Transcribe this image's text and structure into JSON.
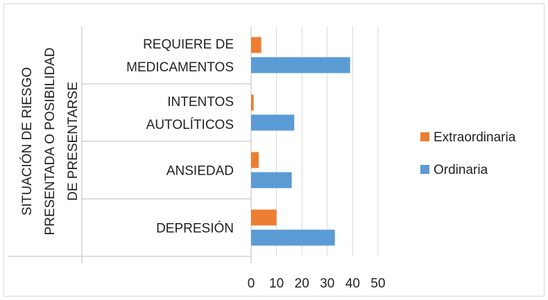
{
  "chart_data": {
    "type": "bar",
    "orientation": "horizontal",
    "categories": [
      "DEPRESIÓN",
      "ANSIEDAD",
      "INTENTOS AUTOLÍTICOS",
      "REQUIERE DE MEDICAMENTOS"
    ],
    "category_label_lines": [
      [
        "DEPRESIÓN"
      ],
      [
        "ANSIEDAD"
      ],
      [
        "INTENTOS",
        "AUTOLÍTICOS"
      ],
      [
        "REQUIERE DE",
        "MEDICAMENTOS"
      ]
    ],
    "series": [
      {
        "name": "Ordinaria",
        "color": "#5b9bd5",
        "values": [
          33,
          16,
          17,
          39
        ]
      },
      {
        "name": "Extraordinaria",
        "color": "#ed7d31",
        "values": [
          10,
          3,
          1,
          4
        ]
      }
    ],
    "ylabel_lines": [
      "SITUACIÓN DE RIESGO",
      "PRESENTADA O POSIBILIDAD",
      "DE PRESENTARSE"
    ],
    "xlabel": "",
    "title": "",
    "xlim": [
      0,
      50
    ],
    "xticks": [
      "0",
      "10",
      "20",
      "30",
      "40",
      "50"
    ],
    "grid": true,
    "legend_position": "right",
    "legend_order": [
      "Extraordinaria",
      "Ordinaria"
    ]
  }
}
